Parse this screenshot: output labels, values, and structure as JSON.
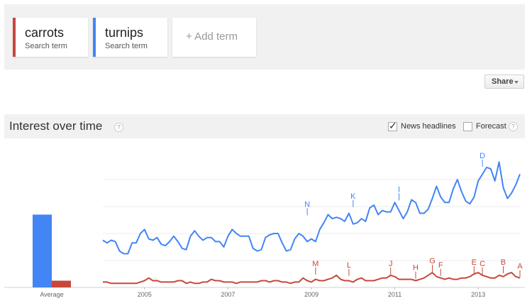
{
  "terms": [
    {
      "name": "carrots",
      "subtitle": "Search term",
      "color": "#c8473c"
    },
    {
      "name": "turnips",
      "subtitle": "Search term",
      "color": "#4285f4"
    }
  ],
  "add_term_label": "+ Add term",
  "share_label": "Share",
  "section_title": "Interest over time",
  "help_glyph": "?",
  "options": {
    "news_headlines": {
      "label": "News headlines",
      "checked": true
    },
    "forecast": {
      "label": "Forecast",
      "checked": false
    }
  },
  "chart_data": {
    "type": "line",
    "x_tick_labels": [
      "2005",
      "2007",
      "2009",
      "2011",
      "2013"
    ],
    "x_tick_years": [
      2005,
      2007,
      2009,
      2011,
      2013
    ],
    "x_range": [
      2004.0,
      2014.0
    ],
    "y_range": [
      0,
      100
    ],
    "grid": true,
    "legend": "none",
    "average": {
      "label": "Average",
      "values": [
        {
          "name": "turnips",
          "value": 54
        },
        {
          "name": "carrots",
          "value": 5
        }
      ]
    },
    "series": [
      {
        "name": "turnips",
        "color": "#4285f4",
        "x": [
          2004.0,
          2004.1,
          2004.2,
          2004.3,
          2004.4,
          2004.5,
          2004.6,
          2004.7,
          2004.8,
          2004.9,
          2005.0,
          2005.1,
          2005.2,
          2005.3,
          2005.4,
          2005.5,
          2005.6,
          2005.7,
          2005.8,
          2005.9,
          2006.0,
          2006.1,
          2006.2,
          2006.3,
          2006.4,
          2006.5,
          2006.6,
          2006.7,
          2006.8,
          2006.9,
          2007.0,
          2007.1,
          2007.2,
          2007.3,
          2007.4,
          2007.5,
          2007.6,
          2007.7,
          2007.8,
          2007.9,
          2008.0,
          2008.1,
          2008.2,
          2008.3,
          2008.4,
          2008.5,
          2008.6,
          2008.7,
          2008.8,
          2008.9,
          2009.0,
          2009.1,
          2009.2,
          2009.3,
          2009.4,
          2009.5,
          2009.6,
          2009.7,
          2009.8,
          2009.9,
          2010.0,
          2010.1,
          2010.2,
          2010.3,
          2010.4,
          2010.5,
          2010.6,
          2010.7,
          2010.8,
          2010.9,
          2011.0,
          2011.1,
          2011.2,
          2011.3,
          2011.4,
          2011.5,
          2011.6,
          2011.7,
          2011.8,
          2011.9,
          2012.0,
          2012.1,
          2012.2,
          2012.3,
          2012.4,
          2012.5,
          2012.6,
          2012.7,
          2012.8,
          2012.9,
          2013.0,
          2013.1,
          2013.2,
          2013.3,
          2013.4,
          2013.5,
          2013.6,
          2013.7,
          2013.8,
          2013.9,
          2014.0
        ],
        "values": [
          35,
          33,
          35,
          34,
          27,
          25,
          25,
          33,
          33,
          40,
          43,
          36,
          35,
          37,
          32,
          31,
          34,
          38,
          34,
          29,
          28,
          38,
          42,
          38,
          35,
          37,
          37,
          34,
          34,
          30,
          38,
          43,
          40,
          38,
          38,
          38,
          29,
          27,
          28,
          37,
          39,
          40,
          40,
          33,
          27,
          28,
          36,
          40,
          38,
          34,
          36,
          34,
          43,
          48,
          54,
          51,
          52,
          51,
          49,
          55,
          47,
          48,
          51,
          49,
          59,
          61,
          54,
          57,
          56,
          56,
          63,
          57,
          51,
          56,
          65,
          63,
          55,
          55,
          58,
          66,
          75,
          67,
          63,
          63,
          73,
          80,
          71,
          64,
          62,
          67,
          79,
          84,
          89,
          88,
          79,
          93,
          74,
          66,
          70,
          76,
          84
        ]
      },
      {
        "name": "carrots",
        "color": "#c8473c",
        "x": [
          2004.0,
          2004.1,
          2004.2,
          2004.3,
          2004.4,
          2004.5,
          2004.6,
          2004.7,
          2004.8,
          2004.9,
          2005.0,
          2005.1,
          2005.2,
          2005.3,
          2005.4,
          2005.5,
          2005.6,
          2005.7,
          2005.8,
          2005.9,
          2006.0,
          2006.1,
          2006.2,
          2006.3,
          2006.4,
          2006.5,
          2006.6,
          2006.7,
          2006.8,
          2006.9,
          2007.0,
          2007.1,
          2007.2,
          2007.3,
          2007.4,
          2007.5,
          2007.6,
          2007.7,
          2007.8,
          2007.9,
          2008.0,
          2008.1,
          2008.2,
          2008.3,
          2008.4,
          2008.5,
          2008.6,
          2008.7,
          2008.8,
          2008.9,
          2009.0,
          2009.1,
          2009.2,
          2009.3,
          2009.4,
          2009.5,
          2009.6,
          2009.7,
          2009.8,
          2009.9,
          2010.0,
          2010.1,
          2010.2,
          2010.3,
          2010.4,
          2010.5,
          2010.6,
          2010.7,
          2010.8,
          2010.9,
          2011.0,
          2011.1,
          2011.2,
          2011.3,
          2011.4,
          2011.5,
          2011.6,
          2011.7,
          2011.8,
          2011.9,
          2012.0,
          2012.1,
          2012.2,
          2012.3,
          2012.4,
          2012.5,
          2012.6,
          2012.7,
          2012.8,
          2012.9,
          2013.0,
          2013.1,
          2013.2,
          2013.3,
          2013.4,
          2013.5,
          2013.6,
          2013.7,
          2013.8,
          2013.9,
          2014.0
        ],
        "values": [
          4,
          4,
          3,
          3,
          3,
          3,
          3,
          3,
          3,
          4,
          5,
          7,
          5,
          5,
          4,
          4,
          4,
          4,
          5,
          5,
          3,
          4,
          3,
          3,
          4,
          4,
          6,
          5,
          5,
          4,
          4,
          4,
          3,
          4,
          4,
          4,
          4,
          4,
          5,
          5,
          4,
          5,
          5,
          4,
          4,
          3,
          4,
          4,
          7,
          5,
          4,
          6,
          5,
          5,
          6,
          7,
          9,
          6,
          5,
          5,
          4,
          6,
          7,
          5,
          5,
          5,
          6,
          7,
          7,
          9,
          8,
          6,
          6,
          6,
          6,
          5,
          6,
          7,
          9,
          11,
          8,
          7,
          6,
          7,
          6,
          6,
          7,
          7,
          8,
          10,
          11,
          9,
          8,
          7,
          7,
          9,
          8,
          10,
          11,
          8,
          7
        ]
      }
    ],
    "annotations": [
      {
        "letter": "N",
        "x": 2008.9,
        "series": "turnips",
        "value": 53
      },
      {
        "letter": "K",
        "x": 2010.0,
        "series": "turnips",
        "value": 59
      },
      {
        "letter": "I",
        "x": 2011.1,
        "series": "turnips",
        "value": 64
      },
      {
        "letter": "D",
        "x": 2013.1,
        "series": "turnips",
        "value": 89
      },
      {
        "letter": "M",
        "x": 2009.1,
        "series": "carrots",
        "value": 9
      },
      {
        "letter": "L",
        "x": 2009.9,
        "series": "carrots",
        "value": 8
      },
      {
        "letter": "J",
        "x": 2010.9,
        "series": "carrots",
        "value": 9
      },
      {
        "letter": "H",
        "x": 2011.5,
        "series": "carrots",
        "value": 6
      },
      {
        "letter": "G",
        "x": 2011.9,
        "series": "carrots",
        "value": 11
      },
      {
        "letter": "F",
        "x": 2012.1,
        "series": "carrots",
        "value": 8
      },
      {
        "letter": "E",
        "x": 2012.9,
        "series": "carrots",
        "value": 10
      },
      {
        "letter": "C",
        "x": 2013.1,
        "series": "carrots",
        "value": 9
      },
      {
        "letter": "B",
        "x": 2013.6,
        "series": "carrots",
        "value": 10
      },
      {
        "letter": "A",
        "x": 2014.0,
        "series": "carrots",
        "value": 7
      }
    ]
  }
}
